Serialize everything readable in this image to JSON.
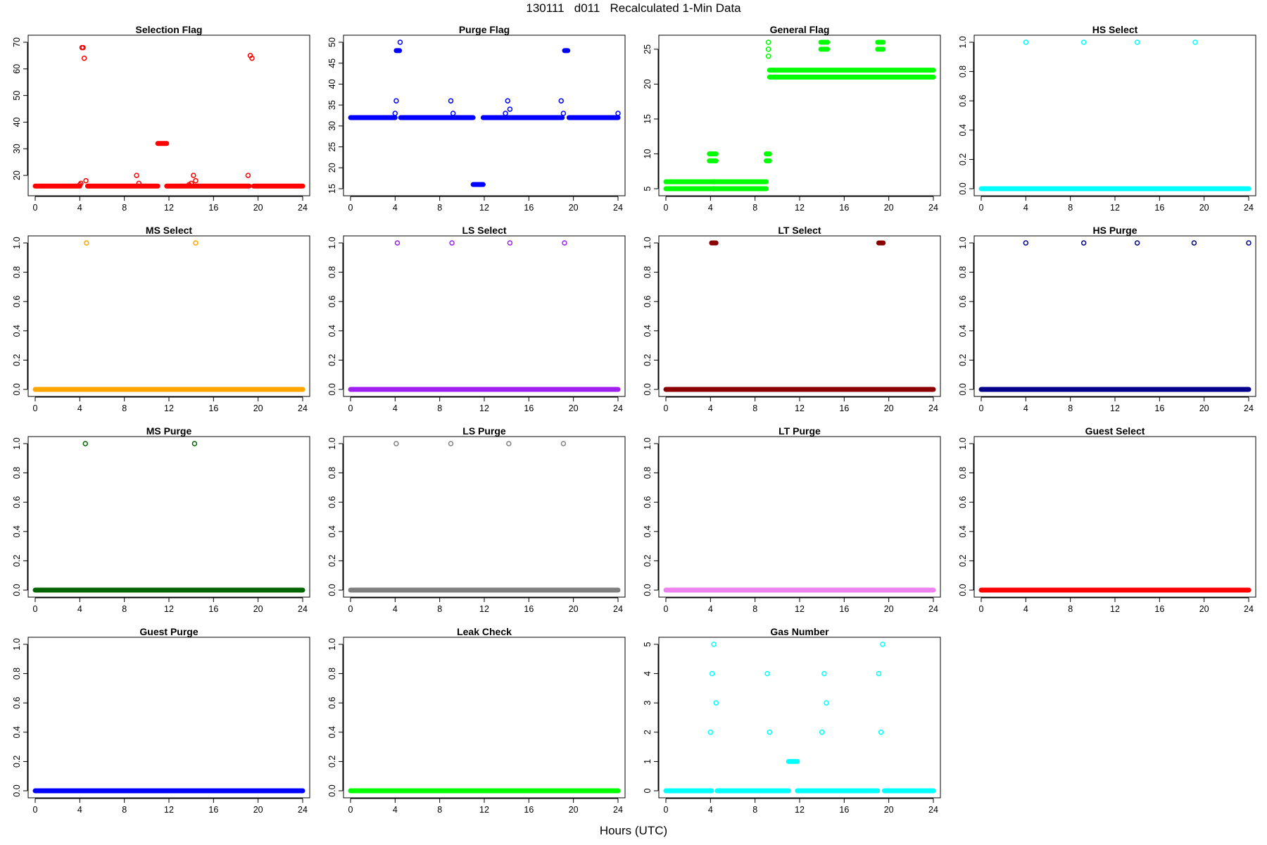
{
  "figure": {
    "title": "130111   d011   Recalculated 1-Min Data",
    "xlabel": "Hours (UTC)"
  },
  "chart_data": [
    {
      "type": "scatter",
      "title": "Selection Flag",
      "color": "#ff0000",
      "xlim": [
        0,
        24
      ],
      "ylim": [
        15,
        70
      ],
      "xticks": [
        0,
        4,
        8,
        12,
        16,
        20,
        24
      ],
      "yticks": [
        20,
        30,
        40,
        50,
        60,
        70
      ],
      "ytick_labels": [
        "20",
        "30",
        "40",
        "50",
        "60",
        "70"
      ],
      "baseline_segments": [
        {
          "from": 0,
          "to": 4.0,
          "y": 16
        },
        {
          "from": 4.7,
          "to": 11.0,
          "y": 16
        },
        {
          "from": 11.8,
          "to": 19.2,
          "y": 16
        },
        {
          "from": 19.6,
          "to": 24,
          "y": 16
        }
      ],
      "segments": [
        {
          "from": 11.0,
          "to": 11.8,
          "y": 32
        }
      ],
      "points": [
        {
          "x": 4.0,
          "y": 16.5
        },
        {
          "x": 4.1,
          "y": 17
        },
        {
          "x": 4.2,
          "y": 68
        },
        {
          "x": 4.3,
          "y": 68
        },
        {
          "x": 4.4,
          "y": 64
        },
        {
          "x": 4.55,
          "y": 18
        },
        {
          "x": 9.1,
          "y": 20
        },
        {
          "x": 9.3,
          "y": 17
        },
        {
          "x": 13.8,
          "y": 16.5
        },
        {
          "x": 14.0,
          "y": 17
        },
        {
          "x": 14.2,
          "y": 20
        },
        {
          "x": 14.4,
          "y": 18
        },
        {
          "x": 19.1,
          "y": 20
        },
        {
          "x": 19.3,
          "y": 65
        },
        {
          "x": 19.45,
          "y": 64
        }
      ]
    },
    {
      "type": "scatter",
      "title": "Purge Flag",
      "color": "#0000ff",
      "xlim": [
        0,
        24
      ],
      "ylim": [
        15,
        50
      ],
      "xticks": [
        0,
        4,
        8,
        12,
        16,
        20,
        24
      ],
      "yticks": [
        15,
        20,
        25,
        30,
        35,
        40,
        45,
        50
      ],
      "ytick_labels": [
        "15",
        "20",
        "25",
        "30",
        "35",
        "40",
        "45",
        "50"
      ],
      "baseline_segments": [
        {
          "from": 0,
          "to": 4.0,
          "y": 32
        },
        {
          "from": 4.5,
          "to": 11.0,
          "y": 32
        },
        {
          "from": 11.9,
          "to": 19.0,
          "y": 32
        },
        {
          "from": 19.6,
          "to": 24,
          "y": 32
        }
      ],
      "segments": [
        {
          "from": 11.0,
          "to": 11.9,
          "y": 16
        },
        {
          "from": 4.1,
          "to": 4.4,
          "y": 48
        },
        {
          "from": 19.2,
          "to": 19.5,
          "y": 48
        }
      ],
      "points": [
        {
          "x": 4.0,
          "y": 33
        },
        {
          "x": 4.1,
          "y": 36
        },
        {
          "x": 4.45,
          "y": 50
        },
        {
          "x": 9.0,
          "y": 36
        },
        {
          "x": 9.2,
          "y": 33
        },
        {
          "x": 13.9,
          "y": 33
        },
        {
          "x": 14.1,
          "y": 36
        },
        {
          "x": 14.3,
          "y": 34
        },
        {
          "x": 18.9,
          "y": 36
        },
        {
          "x": 19.1,
          "y": 33
        },
        {
          "x": 24.0,
          "y": 33
        }
      ]
    },
    {
      "type": "scatter",
      "title": "General Flag",
      "color": "#00ff00",
      "xlim": [
        0,
        24
      ],
      "ylim": [
        5,
        26
      ],
      "xticks": [
        0,
        4,
        8,
        12,
        16,
        20,
        24
      ],
      "yticks": [
        5,
        10,
        15,
        20,
        25
      ],
      "ytick_labels": [
        "5",
        "10",
        "15",
        "20",
        "25"
      ],
      "baseline_segments": [
        {
          "from": 0,
          "to": 9.0,
          "y": 5
        },
        {
          "from": 0,
          "to": 9.0,
          "y": 6
        },
        {
          "from": 9.3,
          "to": 24,
          "y": 21
        },
        {
          "from": 9.3,
          "to": 24,
          "y": 22
        }
      ],
      "segments": [
        {
          "from": 3.9,
          "to": 4.5,
          "y": 9
        },
        {
          "from": 3.9,
          "to": 4.5,
          "y": 10
        },
        {
          "from": 9.0,
          "to": 9.3,
          "y": 9
        },
        {
          "from": 9.0,
          "to": 9.3,
          "y": 10
        },
        {
          "from": 13.9,
          "to": 14.5,
          "y": 25
        },
        {
          "from": 13.9,
          "to": 14.5,
          "y": 26
        },
        {
          "from": 19.0,
          "to": 19.5,
          "y": 25
        },
        {
          "from": 19.0,
          "to": 19.5,
          "y": 26
        }
      ],
      "points": [
        {
          "x": 4.3,
          "y": 6
        },
        {
          "x": 4.3,
          "y": 5
        },
        {
          "x": 9.2,
          "y": 26
        },
        {
          "x": 9.2,
          "y": 25
        },
        {
          "x": 9.2,
          "y": 24
        }
      ]
    },
    {
      "type": "scatter",
      "title": "HS Select",
      "color": "#00ffff",
      "xlim": [
        0,
        24
      ],
      "ylim": [
        0,
        1
      ],
      "xticks": [
        0,
        4,
        8,
        12,
        16,
        20,
        24
      ],
      "yticks": [
        0,
        0.2,
        0.4,
        0.6,
        0.8,
        1.0
      ],
      "ytick_labels": [
        "0.0",
        "0.2",
        "0.4",
        "0.6",
        "0.8",
        "1.0"
      ],
      "baseline_segments": [
        {
          "from": 0,
          "to": 24,
          "y": 0
        }
      ],
      "segments": [],
      "points": [
        {
          "x": 4.0,
          "y": 1
        },
        {
          "x": 9.2,
          "y": 1
        },
        {
          "x": 14.0,
          "y": 1
        },
        {
          "x": 19.2,
          "y": 1
        }
      ]
    },
    {
      "type": "scatter",
      "title": "MS Select",
      "color": "#ffa500",
      "xlim": [
        0,
        24
      ],
      "ylim": [
        0,
        1
      ],
      "xticks": [
        0,
        4,
        8,
        12,
        16,
        20,
        24
      ],
      "yticks": [
        0,
        0.2,
        0.4,
        0.6,
        0.8,
        1.0
      ],
      "ytick_labels": [
        "0.0",
        "0.2",
        "0.4",
        "0.6",
        "0.8",
        "1.0"
      ],
      "baseline_segments": [
        {
          "from": 0,
          "to": 24,
          "y": 0
        }
      ],
      "segments": [],
      "points": [
        {
          "x": 4.6,
          "y": 1
        },
        {
          "x": 14.4,
          "y": 1
        }
      ]
    },
    {
      "type": "scatter",
      "title": "LS Select",
      "color": "#a020f0",
      "xlim": [
        0,
        24
      ],
      "ylim": [
        0,
        1
      ],
      "xticks": [
        0,
        4,
        8,
        12,
        16,
        20,
        24
      ],
      "yticks": [
        0,
        0.2,
        0.4,
        0.6,
        0.8,
        1.0
      ],
      "ytick_labels": [
        "0.0",
        "0.2",
        "0.4",
        "0.6",
        "0.8",
        "1.0"
      ],
      "baseline_segments": [
        {
          "from": 0,
          "to": 24,
          "y": 0
        }
      ],
      "segments": [],
      "points": [
        {
          "x": 4.2,
          "y": 1
        },
        {
          "x": 9.1,
          "y": 1
        },
        {
          "x": 14.3,
          "y": 1
        },
        {
          "x": 19.2,
          "y": 1
        }
      ]
    },
    {
      "type": "scatter",
      "title": "LT Select",
      "color": "#8b0000",
      "xlim": [
        0,
        24
      ],
      "ylim": [
        0,
        1
      ],
      "xticks": [
        0,
        4,
        8,
        12,
        16,
        20,
        24
      ],
      "yticks": [
        0,
        0.2,
        0.4,
        0.6,
        0.8,
        1.0
      ],
      "ytick_labels": [
        "0.0",
        "0.2",
        "0.4",
        "0.6",
        "0.8",
        "1.0"
      ],
      "baseline_segments": [
        {
          "from": 0,
          "to": 24,
          "y": 0
        }
      ],
      "segments": [
        {
          "from": 4.1,
          "to": 4.5,
          "y": 1
        },
        {
          "from": 19.1,
          "to": 19.5,
          "y": 1
        }
      ],
      "points": []
    },
    {
      "type": "scatter",
      "title": "HS Purge",
      "color": "#00008b",
      "xlim": [
        0,
        24
      ],
      "ylim": [
        0,
        1
      ],
      "xticks": [
        0,
        4,
        8,
        12,
        16,
        20,
        24
      ],
      "yticks": [
        0,
        0.2,
        0.4,
        0.6,
        0.8,
        1.0
      ],
      "ytick_labels": [
        "0.0",
        "0.2",
        "0.4",
        "0.6",
        "0.8",
        "1.0"
      ],
      "baseline_segments": [
        {
          "from": 0,
          "to": 24,
          "y": 0
        }
      ],
      "segments": [],
      "points": [
        {
          "x": 4.0,
          "y": 1
        },
        {
          "x": 9.2,
          "y": 1
        },
        {
          "x": 14.0,
          "y": 1
        },
        {
          "x": 19.1,
          "y": 1
        },
        {
          "x": 24.0,
          "y": 1
        }
      ]
    },
    {
      "type": "scatter",
      "title": "MS Purge",
      "color": "#006400",
      "xlim": [
        0,
        24
      ],
      "ylim": [
        0,
        1
      ],
      "xticks": [
        0,
        4,
        8,
        12,
        16,
        20,
        24
      ],
      "yticks": [
        0,
        0.2,
        0.4,
        0.6,
        0.8,
        1.0
      ],
      "ytick_labels": [
        "0.0",
        "0.2",
        "0.4",
        "0.6",
        "0.8",
        "1.0"
      ],
      "baseline_segments": [
        {
          "from": 0,
          "to": 24,
          "y": 0
        }
      ],
      "segments": [],
      "points": [
        {
          "x": 4.5,
          "y": 1
        },
        {
          "x": 14.3,
          "y": 1
        }
      ]
    },
    {
      "type": "scatter",
      "title": "LS Purge",
      "color": "#808080",
      "xlim": [
        0,
        24
      ],
      "ylim": [
        0,
        1
      ],
      "xticks": [
        0,
        4,
        8,
        12,
        16,
        20,
        24
      ],
      "yticks": [
        0,
        0.2,
        0.4,
        0.6,
        0.8,
        1.0
      ],
      "ytick_labels": [
        "0.0",
        "0.2",
        "0.4",
        "0.6",
        "0.8",
        "1.0"
      ],
      "baseline_segments": [
        {
          "from": 0,
          "to": 24,
          "y": 0
        }
      ],
      "segments": [],
      "points": [
        {
          "x": 4.1,
          "y": 1
        },
        {
          "x": 9.0,
          "y": 1
        },
        {
          "x": 14.2,
          "y": 1
        },
        {
          "x": 19.1,
          "y": 1
        }
      ]
    },
    {
      "type": "scatter",
      "title": "LT Purge",
      "color": "#ee82ee",
      "xlim": [
        0,
        24
      ],
      "ylim": [
        0,
        1
      ],
      "xticks": [
        0,
        4,
        8,
        12,
        16,
        20,
        24
      ],
      "yticks": [
        0,
        0.2,
        0.4,
        0.6,
        0.8,
        1.0
      ],
      "ytick_labels": [
        "0.0",
        "0.2",
        "0.4",
        "0.6",
        "0.8",
        "1.0"
      ],
      "baseline_segments": [
        {
          "from": 0,
          "to": 24,
          "y": 0
        }
      ],
      "segments": [],
      "points": []
    },
    {
      "type": "scatter",
      "title": "Guest Select",
      "color": "#ff0000",
      "xlim": [
        0,
        24
      ],
      "ylim": [
        0,
        1
      ],
      "xticks": [
        0,
        4,
        8,
        12,
        16,
        20,
        24
      ],
      "yticks": [
        0,
        0.2,
        0.4,
        0.6,
        0.8,
        1.0
      ],
      "ytick_labels": [
        "0.0",
        "0.2",
        "0.4",
        "0.6",
        "0.8",
        "1.0"
      ],
      "baseline_segments": [
        {
          "from": 0,
          "to": 24,
          "y": 0
        }
      ],
      "segments": [],
      "points": []
    },
    {
      "type": "scatter",
      "title": "Guest Purge",
      "color": "#0000ff",
      "xlim": [
        0,
        24
      ],
      "ylim": [
        0,
        1
      ],
      "xticks": [
        0,
        4,
        8,
        12,
        16,
        20,
        24
      ],
      "yticks": [
        0,
        0.2,
        0.4,
        0.6,
        0.8,
        1.0
      ],
      "ytick_labels": [
        "0.0",
        "0.2",
        "0.4",
        "0.6",
        "0.8",
        "1.0"
      ],
      "baseline_segments": [
        {
          "from": 0,
          "to": 24,
          "y": 0
        }
      ],
      "segments": [],
      "points": []
    },
    {
      "type": "scatter",
      "title": "Leak Check",
      "color": "#00ff00",
      "xlim": [
        0,
        24
      ],
      "ylim": [
        0,
        1
      ],
      "xticks": [
        0,
        4,
        8,
        12,
        16,
        20,
        24
      ],
      "yticks": [
        0,
        0.2,
        0.4,
        0.6,
        0.8,
        1.0
      ],
      "ytick_labels": [
        "0.0",
        "0.2",
        "0.4",
        "0.6",
        "0.8",
        "1.0"
      ],
      "baseline_segments": [
        {
          "from": 0,
          "to": 24,
          "y": 0
        }
      ],
      "segments": [],
      "points": []
    },
    {
      "type": "scatter",
      "title": "Gas Number",
      "color": "#00ffff",
      "xlim": [
        0,
        24
      ],
      "ylim": [
        0,
        5
      ],
      "xticks": [
        0,
        4,
        8,
        12,
        16,
        20,
        24
      ],
      "yticks": [
        0,
        1,
        2,
        3,
        4,
        5
      ],
      "ytick_labels": [
        "0",
        "1",
        "2",
        "3",
        "4",
        "5"
      ],
      "baseline_segments": [
        {
          "from": 0,
          "to": 4.1,
          "y": 0
        },
        {
          "from": 4.6,
          "to": 11.0,
          "y": 0
        },
        {
          "from": 11.8,
          "to": 19.0,
          "y": 0
        },
        {
          "from": 19.6,
          "to": 24,
          "y": 0
        }
      ],
      "segments": [
        {
          "from": 11.0,
          "to": 11.8,
          "y": 1
        }
      ],
      "points": [
        {
          "x": 4.0,
          "y": 2
        },
        {
          "x": 4.15,
          "y": 4
        },
        {
          "x": 4.3,
          "y": 5
        },
        {
          "x": 4.5,
          "y": 3
        },
        {
          "x": 9.1,
          "y": 4
        },
        {
          "x": 9.3,
          "y": 2
        },
        {
          "x": 14.0,
          "y": 2
        },
        {
          "x": 14.2,
          "y": 4
        },
        {
          "x": 14.4,
          "y": 3
        },
        {
          "x": 19.1,
          "y": 4
        },
        {
          "x": 19.3,
          "y": 2
        },
        {
          "x": 19.45,
          "y": 5
        }
      ]
    }
  ]
}
